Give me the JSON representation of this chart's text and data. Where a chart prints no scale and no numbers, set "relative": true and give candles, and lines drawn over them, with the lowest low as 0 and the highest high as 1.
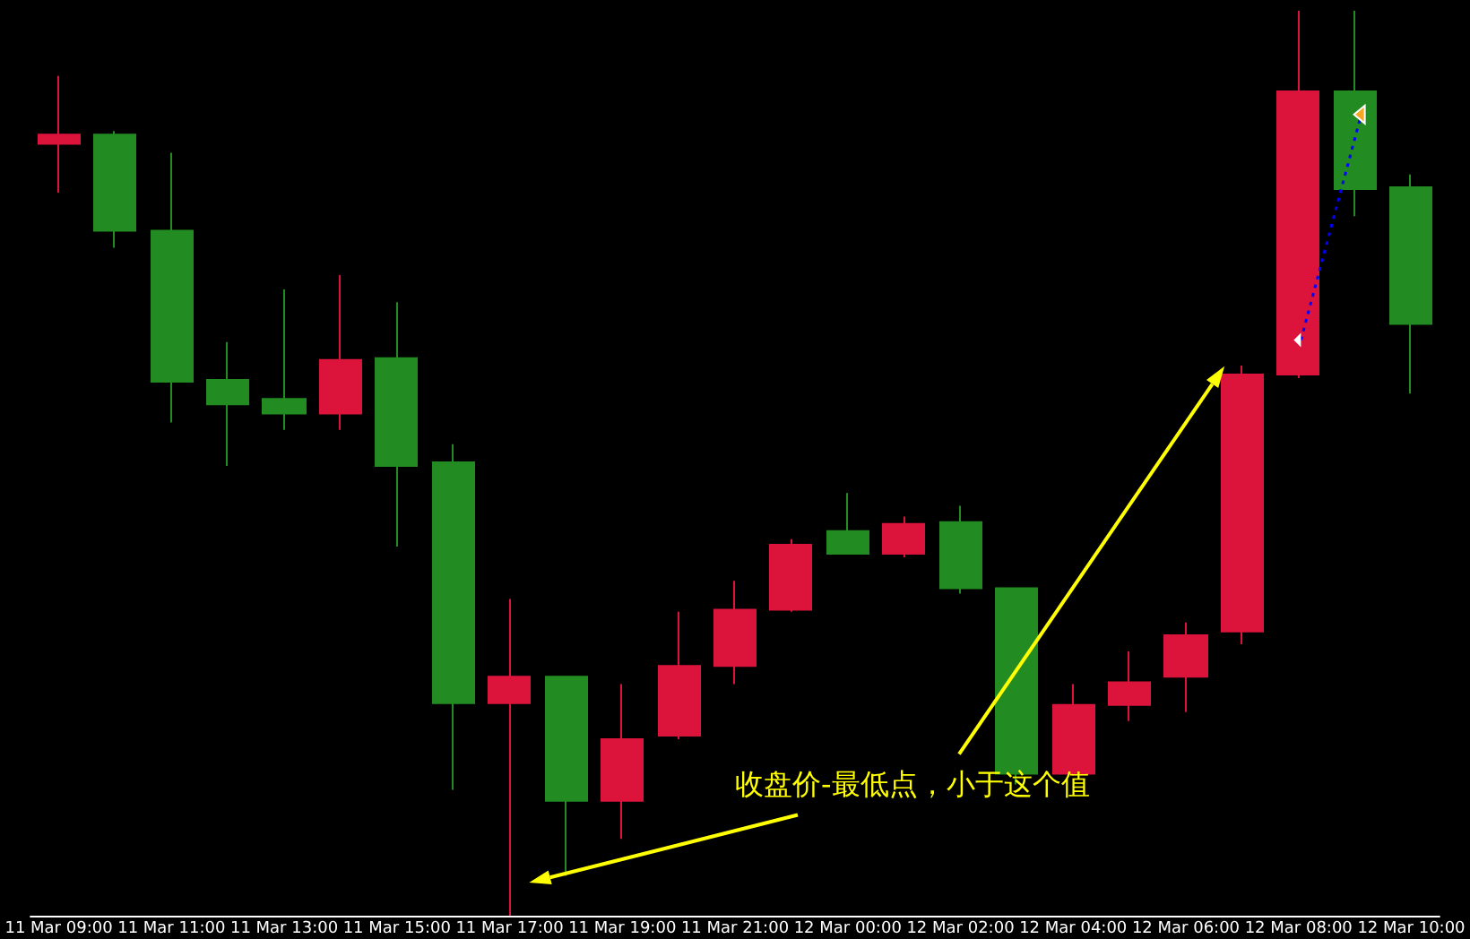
{
  "chart_data": {
    "type": "candlestick",
    "relative": true,
    "categories": [
      "11 Mar 09:00",
      null,
      "11 Mar 11:00",
      null,
      "11 Mar 13:00",
      null,
      "11 Mar 15:00",
      null,
      "11 Mar 17:00",
      null,
      "11 Mar 19:00",
      null,
      "11 Mar 21:00",
      null,
      "12 Mar 00:00",
      null,
      "12 Mar 02:00",
      null,
      "12 Mar 04:00",
      null,
      "12 Mar 06:00",
      null,
      "12 Mar 08:00",
      null,
      "12 Mar 10:00"
    ],
    "ohlc": [
      [
        0.853,
        0.928,
        0.799,
        0.863
      ],
      [
        0.863,
        0.867,
        0.738,
        0.757
      ],
      [
        0.757,
        0.843,
        0.545,
        0.59
      ],
      [
        0.592,
        0.634,
        0.497,
        0.565
      ],
      [
        0.571,
        0.692,
        0.537,
        0.555
      ],
      [
        0.555,
        0.708,
        0.537,
        0.614
      ],
      [
        0.616,
        0.678,
        0.408,
        0.497
      ],
      [
        0.501,
        0.521,
        0.139,
        0.235
      ],
      [
        0.235,
        0.35,
        0.0,
        0.264
      ],
      [
        0.264,
        0.264,
        0.044,
        0.127
      ],
      [
        0.127,
        0.256,
        0.085,
        0.195
      ],
      [
        0.199,
        0.336,
        0.195,
        0.276
      ],
      [
        0.276,
        0.37,
        0.256,
        0.338
      ],
      [
        0.338,
        0.416,
        0.336,
        0.41
      ],
      [
        0.425,
        0.467,
        0.4,
        0.4
      ],
      [
        0.4,
        0.441,
        0.396,
        0.433
      ],
      [
        0.435,
        0.453,
        0.356,
        0.362
      ],
      [
        0.362,
        0.362,
        0.145,
        0.157
      ],
      [
        0.157,
        0.256,
        0.155,
        0.233
      ],
      [
        0.233,
        0.292,
        0.215,
        0.258
      ],
      [
        0.264,
        0.324,
        0.225,
        0.31
      ],
      [
        0.314,
        0.608,
        0.3,
        0.598
      ],
      [
        0.598,
        1.0,
        0.594,
        0.911
      ],
      [
        0.911,
        1.0,
        0.773,
        0.803
      ],
      [
        0.805,
        0.819,
        0.577,
        0.654
      ]
    ],
    "colors": [
      "#dc143c",
      "#228b22",
      "#228b22",
      "#228b22",
      "#228b22",
      "#dc143c",
      "#228b22",
      "#228b22",
      "#dc143c",
      "#228b22",
      "#dc143c",
      "#dc143c",
      "#dc143c",
      "#dc143c",
      "#228b22",
      "#dc143c",
      "#228b22",
      "#228b22",
      "#dc143c",
      "#dc143c",
      "#dc143c",
      "#dc143c",
      "#dc143c",
      "#228b22",
      "#228b22"
    ],
    "annotations": [
      "收盘价-最低点，小于这个值"
    ],
    "grid": false
  }
}
